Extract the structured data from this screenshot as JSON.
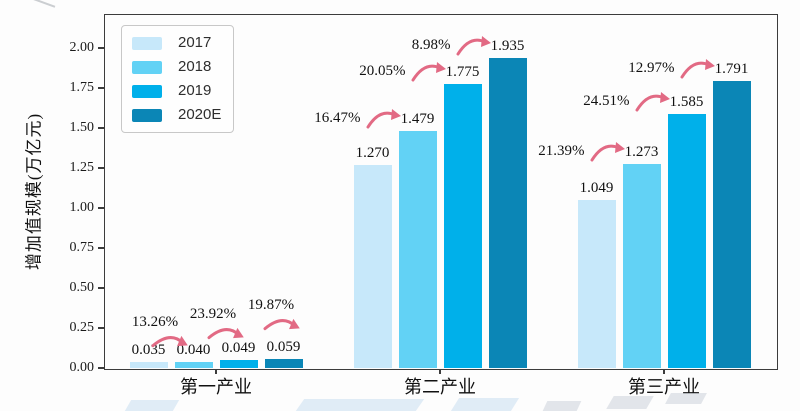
{
  "chart_data": {
    "type": "bar",
    "title": "",
    "xlabel": "",
    "ylabel": "增加值规模(万亿元)",
    "categories": [
      "第一产业",
      "第二产业",
      "第三产业"
    ],
    "series": [
      {
        "name": "2017",
        "color": "#c7e8fa",
        "values": [
          0.035,
          1.27,
          1.049
        ]
      },
      {
        "name": "2018",
        "color": "#62d2f5",
        "values": [
          0.04,
          1.479,
          1.273
        ]
      },
      {
        "name": "2019",
        "color": "#00b0ea",
        "values": [
          0.049,
          1.775,
          1.585
        ]
      },
      {
        "name": "2020E",
        "color": "#0b86b6",
        "values": [
          0.059,
          1.935,
          1.791
        ]
      }
    ],
    "growth_labels": [
      [
        "13.26%",
        "23.92%",
        "19.87%"
      ],
      [
        "16.47%",
        "20.05%",
        "8.98%"
      ],
      [
        "21.39%",
        "24.51%",
        "12.97%"
      ]
    ],
    "y_ticks": [
      "0.00",
      "0.25",
      "0.50",
      "0.75",
      "1.00",
      "1.25",
      "1.50",
      "1.75",
      "2.00"
    ],
    "ylim": [
      0,
      2.21
    ],
    "grid": false,
    "legend_position": "upper-left",
    "legend_entries": [
      "2017",
      "2018",
      "2019",
      "2020E"
    ],
    "value_label_decimals": 3,
    "arrow_color": "#e26a84",
    "axis_color": "#3c3c3c",
    "text_color": "#111111",
    "watermark_colors": [
      "#c9dff0",
      "#ccd2da"
    ]
  }
}
